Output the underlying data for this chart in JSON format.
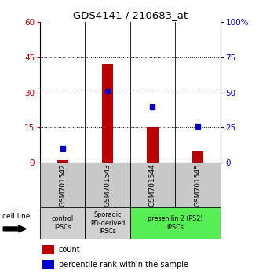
{
  "title": "GDS4141 / 210683_at",
  "samples": [
    "GSM701542",
    "GSM701543",
    "GSM701544",
    "GSM701545"
  ],
  "counts": [
    1,
    42,
    15,
    5
  ],
  "percentile_ranks": [
    10,
    51,
    40,
    26
  ],
  "ylim_left": [
    0,
    60
  ],
  "ylim_right": [
    0,
    100
  ],
  "yticks_left": [
    0,
    15,
    30,
    45,
    60
  ],
  "yticks_right": [
    0,
    25,
    50,
    75,
    100
  ],
  "bar_color": "#bb0000",
  "dot_color": "#0000cc",
  "groups": [
    {
      "label": "control\nIPSCs",
      "samples": [
        0
      ],
      "color": "#d0d0d0"
    },
    {
      "label": "Sporadic\nPD-derived\niPSCs",
      "samples": [
        1
      ],
      "color": "#d0d0d0"
    },
    {
      "label": "presenilin 2 (PS2)\niPSCs",
      "samples": [
        2,
        3
      ],
      "color": "#55ee55"
    }
  ],
  "legend_count_label": "count",
  "legend_pct_label": "percentile rank within the sample",
  "cell_line_label": "cell line",
  "sample_bg_color": "#c8c8c8",
  "bar_width": 0.25
}
